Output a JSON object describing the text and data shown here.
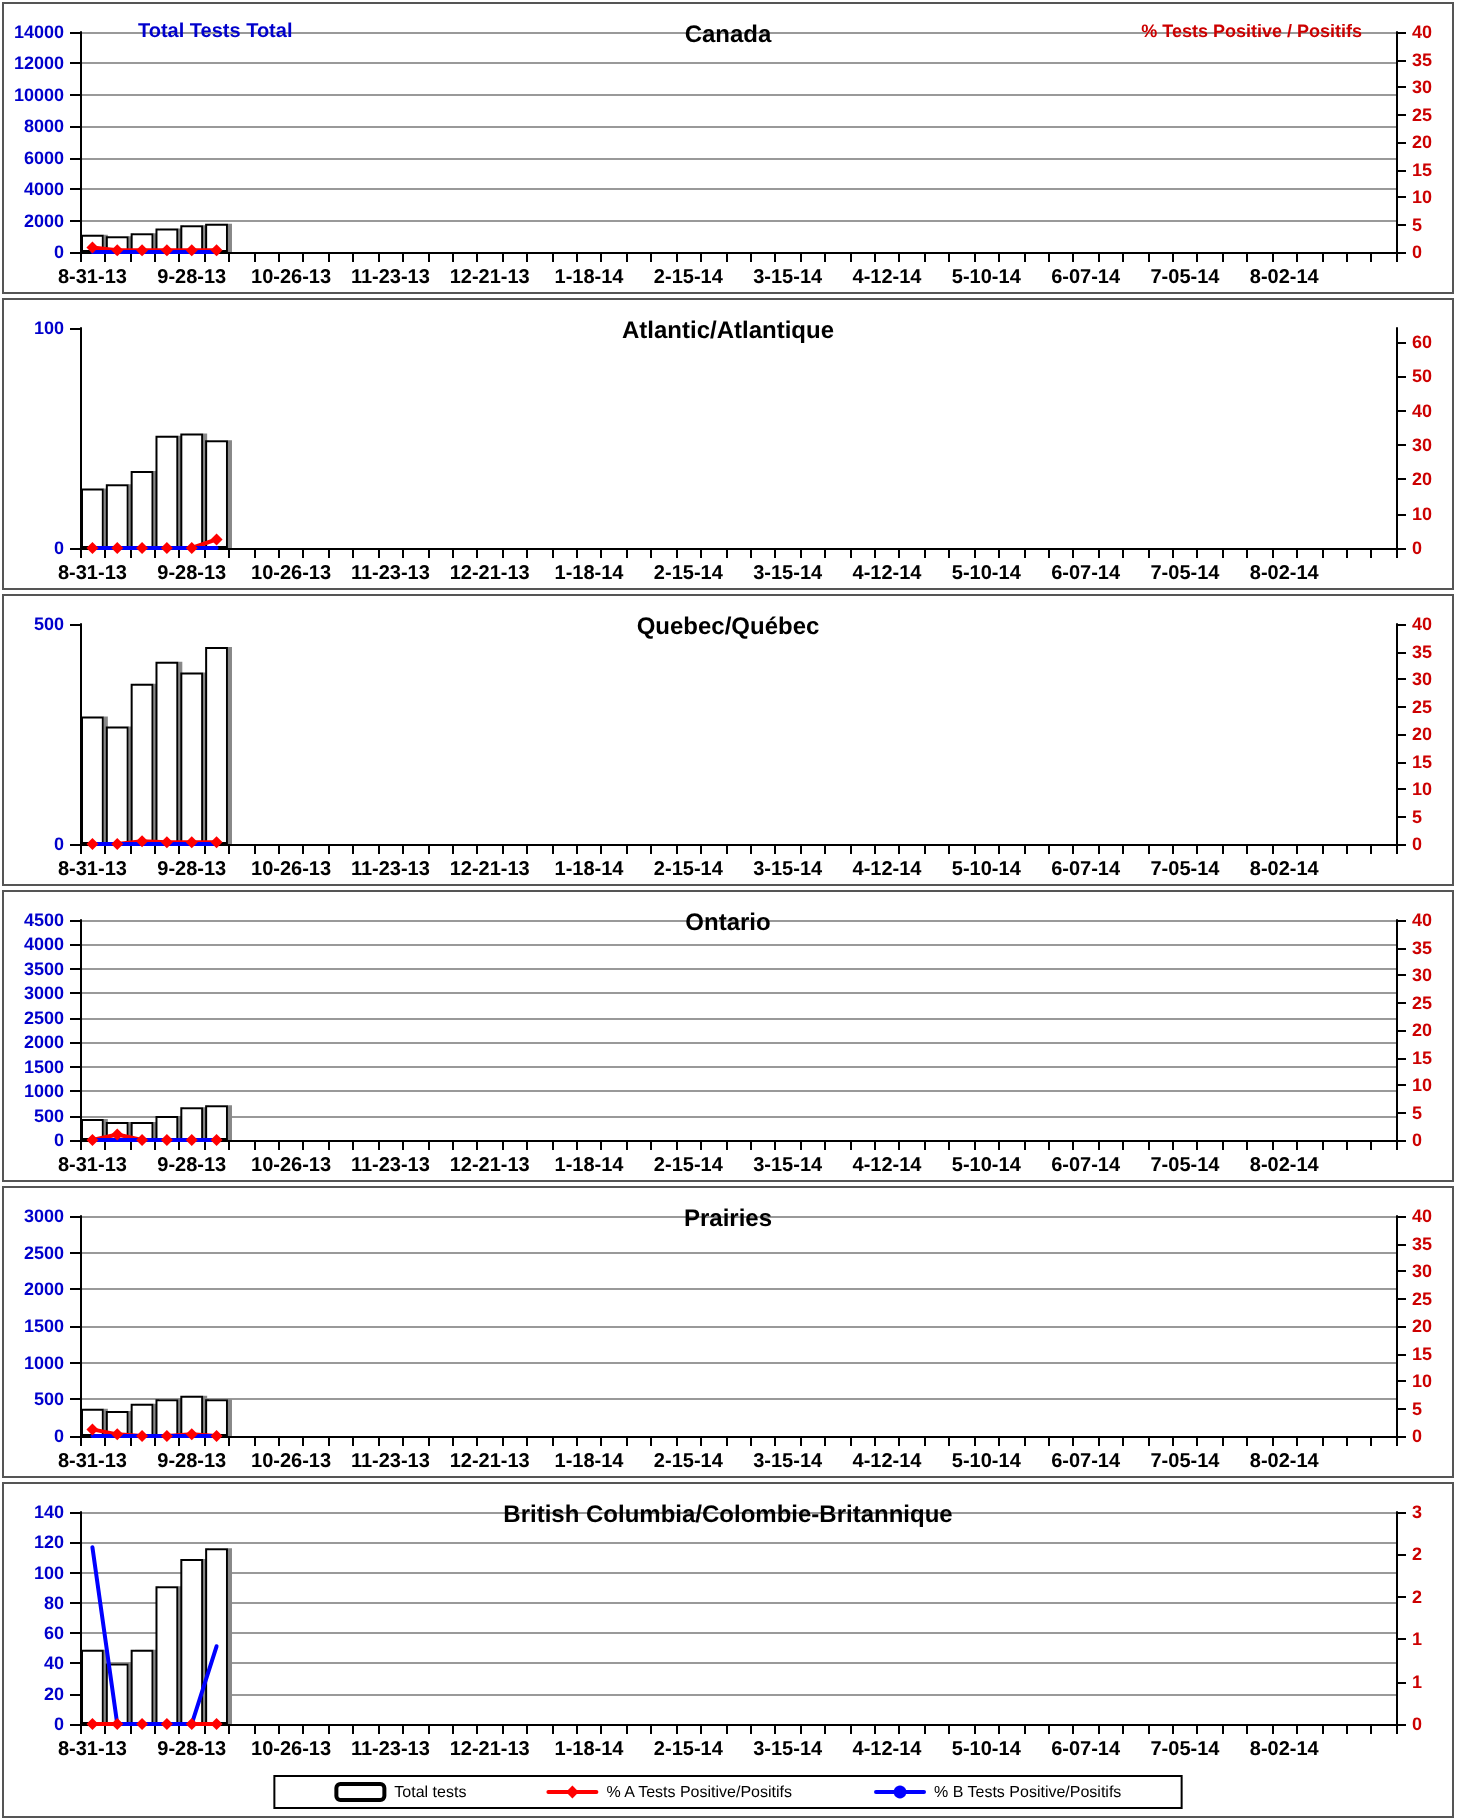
{
  "chart_data": [
    {
      "type": "bar",
      "title": "Canada",
      "ylabel": "Total Tests Total",
      "y2label": "% Tests Positive / Positifs",
      "grid": "y",
      "categories": [
        "8-31-13",
        null,
        null,
        null,
        "9-28-13",
        null,
        null,
        null,
        "10-26-13",
        null,
        null,
        null,
        "11-23-13",
        null,
        null,
        null,
        "12-21-13",
        null,
        null,
        null,
        "1-18-14",
        null,
        null,
        null,
        "2-15-14",
        null,
        null,
        null,
        "3-15-14",
        null,
        null,
        null,
        "4-12-14",
        null,
        null,
        null,
        "5-10-14",
        null,
        null,
        null,
        "6-07-14",
        null,
        null,
        null,
        "7-05-14",
        null,
        null,
        null,
        "8-02-14",
        null,
        null,
        null,
        null
      ],
      "ylim": [
        0,
        14000
      ],
      "yticks": [
        0,
        2000,
        4000,
        6000,
        8000,
        10000,
        12000,
        14000
      ],
      "y2lim": [
        0,
        40
      ],
      "y2ticks": [
        0,
        5,
        10,
        15,
        20,
        25,
        30,
        35,
        40
      ],
      "series": [
        {
          "color": "#ffffff",
          "values": [
            1100,
            1000,
            1200,
            1500,
            1700,
            1800,
            null,
            null,
            null,
            null,
            null,
            null,
            null,
            null,
            null,
            null,
            null,
            null,
            null,
            null,
            null,
            null,
            null,
            null,
            null,
            null,
            null,
            null,
            null,
            null,
            null,
            null,
            null,
            null,
            null,
            null,
            null,
            null,
            null,
            null,
            null,
            null,
            null,
            null,
            null,
            null,
            null,
            null,
            null,
            null,
            null,
            null,
            null
          ]
        },
        {
          "type": "line",
          "axis": "y2",
          "marker": "diamond",
          "color": "#ff0000",
          "values": [
            0.8,
            0.3,
            0.3,
            0.3,
            0.3,
            0.3,
            null,
            null,
            null,
            null,
            null,
            null,
            null,
            null,
            null,
            null,
            null,
            null,
            null,
            null,
            null,
            null,
            null,
            null,
            null,
            null,
            null,
            null,
            null,
            null,
            null,
            null,
            null,
            null,
            null,
            null,
            null,
            null,
            null,
            null,
            null,
            null,
            null,
            null,
            null,
            null,
            null,
            null,
            null,
            null,
            null,
            null,
            null
          ]
        },
        {
          "type": "line",
          "axis": "y2",
          "marker": "none",
          "color": "#0000ff",
          "values": [
            0,
            0,
            0,
            0,
            0,
            0,
            null,
            null,
            null,
            null,
            null,
            null,
            null,
            null,
            null,
            null,
            null,
            null,
            null,
            null,
            null,
            null,
            null,
            null,
            null,
            null,
            null,
            null,
            null,
            null,
            null,
            null,
            null,
            null,
            null,
            null,
            null,
            null,
            null,
            null,
            null,
            null,
            null,
            null,
            null,
            null,
            null,
            null,
            null,
            null,
            null,
            null,
            null
          ]
        }
      ]
    },
    {
      "type": "bar",
      "title": "Atlantic/Atlantique",
      "categories": [
        "8-31-13",
        null,
        null,
        null,
        "9-28-13",
        null,
        null,
        null,
        "10-26-13",
        null,
        null,
        null,
        "11-23-13",
        null,
        null,
        null,
        "12-21-13",
        null,
        null,
        null,
        "1-18-14",
        null,
        null,
        null,
        "2-15-14",
        null,
        null,
        null,
        "3-15-14",
        null,
        null,
        null,
        "4-12-14",
        null,
        null,
        null,
        "5-10-14",
        null,
        null,
        null,
        "6-07-14",
        null,
        null,
        null,
        "7-05-14",
        null,
        null,
        null,
        "8-02-14",
        null,
        null,
        null,
        null
      ],
      "ylim": [
        0,
        100
      ],
      "yticks": [
        0,
        100
      ],
      "y2lim": [
        0,
        64
      ],
      "y2ticks": [
        0,
        10,
        20,
        30,
        40,
        50,
        60
      ],
      "series": [
        {
          "color": "#ffffff",
          "values": [
            27,
            29,
            35,
            51,
            52,
            49,
            null,
            null,
            null,
            null,
            null,
            null,
            null,
            null,
            null,
            null,
            null,
            null,
            null,
            null,
            null,
            null,
            null,
            null,
            null,
            null,
            null,
            null,
            null,
            null,
            null,
            null,
            null,
            null,
            null,
            null,
            null,
            null,
            null,
            null,
            null,
            null,
            null,
            null,
            null,
            null,
            null,
            null,
            null,
            null,
            null,
            null,
            null
          ]
        },
        {
          "type": "line",
          "axis": "y2",
          "marker": "diamond",
          "color": "#ff0000",
          "values": [
            0,
            0,
            0,
            0,
            0,
            2.5,
            null,
            null,
            null,
            null,
            null,
            null,
            null,
            null,
            null,
            null,
            null,
            null,
            null,
            null,
            null,
            null,
            null,
            null,
            null,
            null,
            null,
            null,
            null,
            null,
            null,
            null,
            null,
            null,
            null,
            null,
            null,
            null,
            null,
            null,
            null,
            null,
            null,
            null,
            null,
            null,
            null,
            null,
            null,
            null,
            null,
            null,
            null
          ]
        },
        {
          "type": "line",
          "axis": "y2",
          "marker": "none",
          "color": "#0000ff",
          "values": [
            0,
            0,
            0,
            0,
            0,
            0,
            null,
            null,
            null,
            null,
            null,
            null,
            null,
            null,
            null,
            null,
            null,
            null,
            null,
            null,
            null,
            null,
            null,
            null,
            null,
            null,
            null,
            null,
            null,
            null,
            null,
            null,
            null,
            null,
            null,
            null,
            null,
            null,
            null,
            null,
            null,
            null,
            null,
            null,
            null,
            null,
            null,
            null,
            null,
            null,
            null,
            null,
            null
          ]
        }
      ]
    },
    {
      "type": "bar",
      "title": "Quebec/Québec",
      "categories": [
        "8-31-13",
        null,
        null,
        null,
        "9-28-13",
        null,
        null,
        null,
        "10-26-13",
        null,
        null,
        null,
        "11-23-13",
        null,
        null,
        null,
        "12-21-13",
        null,
        null,
        null,
        "1-18-14",
        null,
        null,
        null,
        "2-15-14",
        null,
        null,
        null,
        "3-15-14",
        null,
        null,
        null,
        "4-12-14",
        null,
        null,
        null,
        "5-10-14",
        null,
        null,
        null,
        "6-07-14",
        null,
        null,
        null,
        "7-05-14",
        null,
        null,
        null,
        "8-02-14",
        null,
        null,
        null,
        null
      ],
      "ylim": [
        0,
        500
      ],
      "yticks": [
        0,
        500
      ],
      "y2lim": [
        0,
        40
      ],
      "y2ticks": [
        0,
        5,
        10,
        15,
        20,
        25,
        30,
        35,
        40
      ],
      "series": [
        {
          "color": "#ffffff",
          "values": [
            290,
            267,
            364,
            414,
            390,
            448,
            null,
            null,
            null,
            null,
            null,
            null,
            null,
            null,
            null,
            null,
            null,
            null,
            null,
            null,
            null,
            null,
            null,
            null,
            null,
            null,
            null,
            null,
            null,
            null,
            null,
            null,
            null,
            null,
            null,
            null,
            null,
            null,
            null,
            null,
            null,
            null,
            null,
            null,
            null,
            null,
            null,
            null,
            null,
            null,
            null,
            null,
            null
          ]
        },
        {
          "type": "line",
          "axis": "y2",
          "marker": "diamond",
          "color": "#ff0000",
          "values": [
            0,
            0,
            0.5,
            0.3,
            0.3,
            0.3,
            null,
            null,
            null,
            null,
            null,
            null,
            null,
            null,
            null,
            null,
            null,
            null,
            null,
            null,
            null,
            null,
            null,
            null,
            null,
            null,
            null,
            null,
            null,
            null,
            null,
            null,
            null,
            null,
            null,
            null,
            null,
            null,
            null,
            null,
            null,
            null,
            null,
            null,
            null,
            null,
            null,
            null,
            null,
            null,
            null,
            null,
            null
          ]
        },
        {
          "type": "line",
          "axis": "y2",
          "marker": "none",
          "color": "#0000ff",
          "values": [
            0,
            0,
            0,
            0,
            0,
            0,
            null,
            null,
            null,
            null,
            null,
            null,
            null,
            null,
            null,
            null,
            null,
            null,
            null,
            null,
            null,
            null,
            null,
            null,
            null,
            null,
            null,
            null,
            null,
            null,
            null,
            null,
            null,
            null,
            null,
            null,
            null,
            null,
            null,
            null,
            null,
            null,
            null,
            null,
            null,
            null,
            null,
            null,
            null,
            null,
            null,
            null,
            null
          ]
        }
      ]
    },
    {
      "type": "bar",
      "title": "Ontario",
      "grid": "y",
      "categories": [
        "8-31-13",
        null,
        null,
        null,
        "9-28-13",
        null,
        null,
        null,
        "10-26-13",
        null,
        null,
        null,
        "11-23-13",
        null,
        null,
        null,
        "12-21-13",
        null,
        null,
        null,
        "1-18-14",
        null,
        null,
        null,
        "2-15-14",
        null,
        null,
        null,
        "3-15-14",
        null,
        null,
        null,
        "4-12-14",
        null,
        null,
        null,
        "5-10-14",
        null,
        null,
        null,
        "6-07-14",
        null,
        null,
        null,
        "7-05-14",
        null,
        null,
        null,
        "8-02-14",
        null,
        null,
        null,
        null
      ],
      "ylim": [
        0,
        4500
      ],
      "yticks": [
        0,
        500,
        1000,
        1500,
        2000,
        2500,
        3000,
        3500,
        4000,
        4500
      ],
      "y2lim": [
        0,
        40
      ],
      "y2ticks": [
        0,
        5,
        10,
        15,
        20,
        25,
        30,
        35,
        40
      ],
      "series": [
        {
          "color": "#ffffff",
          "values": [
            430,
            370,
            370,
            490,
            670,
            710,
            null,
            null,
            null,
            null,
            null,
            null,
            null,
            null,
            null,
            null,
            null,
            null,
            null,
            null,
            null,
            null,
            null,
            null,
            null,
            null,
            null,
            null,
            null,
            null,
            null,
            null,
            null,
            null,
            null,
            null,
            null,
            null,
            null,
            null,
            null,
            null,
            null,
            null,
            null,
            null,
            null,
            null,
            null,
            null,
            null,
            null,
            null
          ]
        },
        {
          "type": "line",
          "axis": "y2",
          "marker": "diamond",
          "color": "#ff0000",
          "values": [
            0,
            1,
            0,
            0,
            0,
            0,
            null,
            null,
            null,
            null,
            null,
            null,
            null,
            null,
            null,
            null,
            null,
            null,
            null,
            null,
            null,
            null,
            null,
            null,
            null,
            null,
            null,
            null,
            null,
            null,
            null,
            null,
            null,
            null,
            null,
            null,
            null,
            null,
            null,
            null,
            null,
            null,
            null,
            null,
            null,
            null,
            null,
            null,
            null,
            null,
            null,
            null,
            null
          ]
        },
        {
          "type": "line",
          "axis": "y2",
          "marker": "none",
          "color": "#0000ff",
          "values": [
            0,
            0,
            0,
            0,
            0,
            0,
            null,
            null,
            null,
            null,
            null,
            null,
            null,
            null,
            null,
            null,
            null,
            null,
            null,
            null,
            null,
            null,
            null,
            null,
            null,
            null,
            null,
            null,
            null,
            null,
            null,
            null,
            null,
            null,
            null,
            null,
            null,
            null,
            null,
            null,
            null,
            null,
            null,
            null,
            null,
            null,
            null,
            null,
            null,
            null,
            null,
            null,
            null
          ]
        }
      ]
    },
    {
      "type": "bar",
      "title": "Prairies",
      "grid": "y",
      "categories": [
        "8-31-13",
        null,
        null,
        null,
        "9-28-13",
        null,
        null,
        null,
        "10-26-13",
        null,
        null,
        null,
        "11-23-13",
        null,
        null,
        null,
        "12-21-13",
        null,
        null,
        null,
        "1-18-14",
        null,
        null,
        null,
        "2-15-14",
        null,
        null,
        null,
        "3-15-14",
        null,
        null,
        null,
        "4-12-14",
        null,
        null,
        null,
        "5-10-14",
        null,
        null,
        null,
        "6-07-14",
        null,
        null,
        null,
        "7-05-14",
        null,
        null,
        null,
        "8-02-14",
        null,
        null,
        null,
        null
      ],
      "ylim": [
        0,
        3000
      ],
      "yticks": [
        0,
        500,
        1000,
        1500,
        2000,
        2500,
        3000
      ],
      "y2lim": [
        0,
        40
      ],
      "y2ticks": [
        0,
        5,
        10,
        15,
        20,
        25,
        30,
        35,
        40
      ],
      "series": [
        {
          "color": "#ffffff",
          "values": [
            370,
            340,
            440,
            500,
            550,
            500,
            null,
            null,
            null,
            null,
            null,
            null,
            null,
            null,
            null,
            null,
            null,
            null,
            null,
            null,
            null,
            null,
            null,
            null,
            null,
            null,
            null,
            null,
            null,
            null,
            null,
            null,
            null,
            null,
            null,
            null,
            null,
            null,
            null,
            null,
            null,
            null,
            null,
            null,
            null,
            null,
            null,
            null,
            null,
            null,
            null,
            null,
            null
          ]
        },
        {
          "type": "line",
          "axis": "y2",
          "marker": "diamond",
          "color": "#ff0000",
          "values": [
            1.2,
            0.3,
            0,
            0,
            0.3,
            0,
            null,
            null,
            null,
            null,
            null,
            null,
            null,
            null,
            null,
            null,
            null,
            null,
            null,
            null,
            null,
            null,
            null,
            null,
            null,
            null,
            null,
            null,
            null,
            null,
            null,
            null,
            null,
            null,
            null,
            null,
            null,
            null,
            null,
            null,
            null,
            null,
            null,
            null,
            null,
            null,
            null,
            null,
            null,
            null,
            null,
            null,
            null
          ]
        },
        {
          "type": "line",
          "axis": "y2",
          "marker": "none",
          "color": "#0000ff",
          "values": [
            0,
            0,
            0,
            0,
            0,
            0,
            null,
            null,
            null,
            null,
            null,
            null,
            null,
            null,
            null,
            null,
            null,
            null,
            null,
            null,
            null,
            null,
            null,
            null,
            null,
            null,
            null,
            null,
            null,
            null,
            null,
            null,
            null,
            null,
            null,
            null,
            null,
            null,
            null,
            null,
            null,
            null,
            null,
            null,
            null,
            null,
            null,
            null,
            null,
            null,
            null,
            null,
            null
          ]
        }
      ]
    },
    {
      "type": "bar",
      "title": "British Columbia/Colombie-Britannique",
      "grid": "y",
      "legend": "bottom",
      "categories": [
        "8-31-13",
        null,
        null,
        null,
        "9-28-13",
        null,
        null,
        null,
        "10-26-13",
        null,
        null,
        null,
        "11-23-13",
        null,
        null,
        null,
        "12-21-13",
        null,
        null,
        null,
        "1-18-14",
        null,
        null,
        null,
        "2-15-14",
        null,
        null,
        null,
        "3-15-14",
        null,
        null,
        null,
        "4-12-14",
        null,
        null,
        null,
        "5-10-14",
        null,
        null,
        null,
        "6-07-14",
        null,
        null,
        null,
        "7-05-14",
        null,
        null,
        null,
        "8-02-14",
        null,
        null,
        null,
        null
      ],
      "ylim": [
        0,
        140
      ],
      "yticks": [
        0,
        20,
        40,
        60,
        80,
        100,
        120,
        140
      ],
      "y2lim": [
        0,
        3
      ],
      "y2ticks": [
        0,
        {
          "value": 0.6,
          "label": "1"
        },
        {
          "value": 1.2,
          "label": "1"
        },
        {
          "value": 1.8,
          "label": "2"
        },
        {
          "value": 2.4,
          "label": "2"
        },
        3
      ],
      "series": [
        {
          "name": "Total tests",
          "color": "#ffffff",
          "values": [
            49,
            40,
            49,
            91,
            109,
            116,
            null,
            null,
            null,
            null,
            null,
            null,
            null,
            null,
            null,
            null,
            null,
            null,
            null,
            null,
            null,
            null,
            null,
            null,
            null,
            null,
            null,
            null,
            null,
            null,
            null,
            null,
            null,
            null,
            null,
            null,
            null,
            null,
            null,
            null,
            null,
            null,
            null,
            null,
            null,
            null,
            null,
            null,
            null,
            null,
            null,
            null,
            null
          ]
        },
        {
          "type": "line",
          "axis": "y2",
          "name": "% A Tests Positive/Positifs",
          "marker": "diamond",
          "color": "#ff0000",
          "values": [
            0,
            0,
            0,
            0,
            0,
            0,
            null,
            null,
            null,
            null,
            null,
            null,
            null,
            null,
            null,
            null,
            null,
            null,
            null,
            null,
            null,
            null,
            null,
            null,
            null,
            null,
            null,
            null,
            null,
            null,
            null,
            null,
            null,
            null,
            null,
            null,
            null,
            null,
            null,
            null,
            null,
            null,
            null,
            null,
            null,
            null,
            null,
            null,
            null,
            null,
            null,
            null,
            null
          ]
        },
        {
          "type": "line",
          "axis": "y2",
          "name": "% B Tests Positive/Positifs",
          "marker": "none",
          "color": "#0000ff",
          "values": [
            2.5,
            0,
            0,
            0,
            0,
            1.1,
            null,
            null,
            null,
            null,
            null,
            null,
            null,
            null,
            null,
            null,
            null,
            null,
            null,
            null,
            null,
            null,
            null,
            null,
            null,
            null,
            null,
            null,
            null,
            null,
            null,
            null,
            null,
            null,
            null,
            null,
            null,
            null,
            null,
            null,
            null,
            null,
            null,
            null,
            null,
            null,
            null,
            null,
            null,
            null,
            null,
            null,
            null
          ]
        }
      ]
    }
  ]
}
